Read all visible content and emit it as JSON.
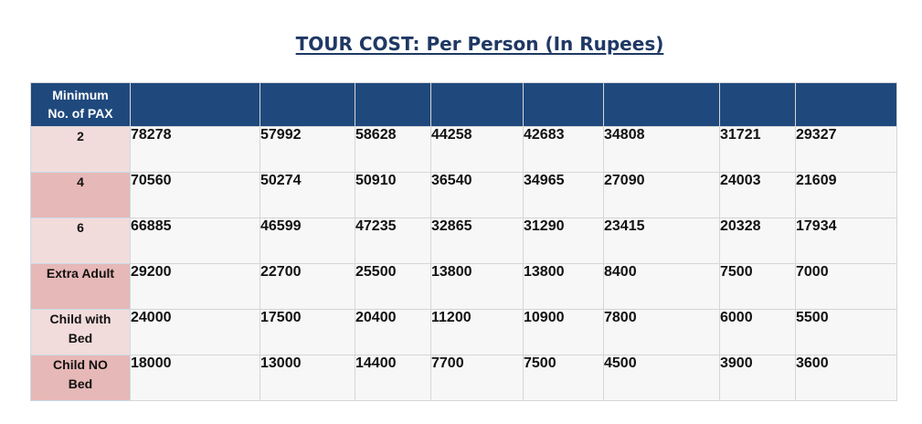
{
  "title": "TOUR COST: Per Person (In Rupees)",
  "table": {
    "header_label": [
      "Minimum",
      "No. of PAX"
    ],
    "header_cells": [
      "",
      "",
      "",
      "",
      "",
      "",
      "",
      ""
    ],
    "rows": [
      {
        "label": [
          "2"
        ],
        "values": [
          "78278",
          "57992",
          "58628",
          "44258",
          "42683",
          "34808",
          "31721",
          "29327"
        ]
      },
      {
        "label": [
          "4"
        ],
        "values": [
          "70560",
          "50274",
          "50910",
          "36540",
          "34965",
          "27090",
          "24003",
          "21609"
        ]
      },
      {
        "label": [
          "6"
        ],
        "values": [
          "66885",
          "46599",
          "47235",
          "32865",
          "31290",
          "23415",
          "20328",
          "17934"
        ]
      },
      {
        "label": [
          "Extra Adult"
        ],
        "values": [
          "29200",
          "22700",
          "25500",
          "13800",
          "13800",
          "8400",
          "7500",
          "7000"
        ]
      },
      {
        "label": [
          "Child with",
          "Bed"
        ],
        "values": [
          "24000",
          "17500",
          "20400",
          "11200",
          "10900",
          "7800",
          "6000",
          "5500"
        ]
      },
      {
        "label": [
          "Child NO",
          "Bed"
        ],
        "values": [
          "18000",
          "13000",
          "14400",
          "7700",
          "7500",
          "4500",
          "3900",
          "3600"
        ]
      }
    ]
  },
  "colors": {
    "header_bg": "#1f497d",
    "title": "#1f3864",
    "label_light": "#f2dcdb",
    "label_dark": "#e6b8b7",
    "cell_bg": "#f7f7f7"
  }
}
